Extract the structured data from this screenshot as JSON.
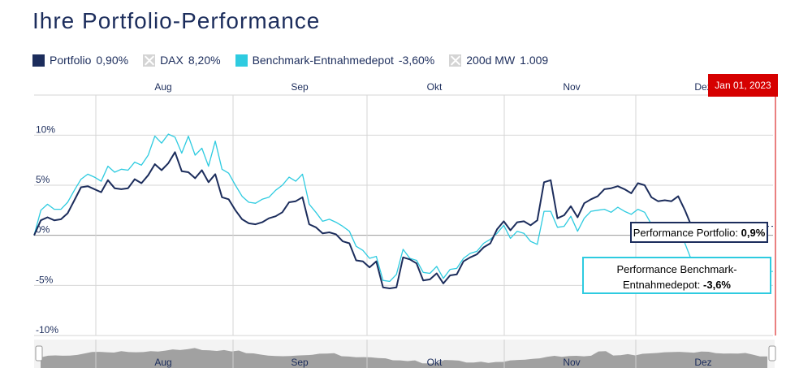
{
  "title": "Ihre Portfolio-Performance",
  "legend": [
    {
      "label": "Portfolio",
      "value": "0,90%",
      "color": "#1c2d5c",
      "active": true
    },
    {
      "label": "DAX",
      "value": "8,20%",
      "color": "#d4d4d4",
      "active": false
    },
    {
      "label": "Benchmark-Entnahmedepot",
      "value": "-3,60%",
      "color": "#2ecbe0",
      "active": true
    },
    {
      "label": "200d MW",
      "value": "1.009",
      "color": "#d4d4d4",
      "active": false
    }
  ],
  "crosshair": {
    "label": "Jan 01, 2023",
    "color": "#d60000"
  },
  "tooltips": {
    "portfolio": {
      "label": "Performance Portfolio:",
      "value": "0,9%"
    },
    "benchmark": {
      "label_line1": "Performance Benchmark-",
      "label_line2": "Entnahmedepot:",
      "value": "-3,6%"
    }
  },
  "chart_data": {
    "type": "line",
    "x_ticks": [
      "Aug",
      "Sep",
      "Okt",
      "Nov",
      "Dez"
    ],
    "y_ticks": [
      "10%",
      "5%",
      "0%",
      "-5%",
      "-10%"
    ],
    "y_tick_values": [
      10,
      5,
      0,
      -5,
      -10
    ],
    "ylim": [
      -10,
      14
    ],
    "grid": true,
    "series": [
      {
        "name": "Portfolio",
        "color": "#1c2d5c",
        "values": [
          0.0,
          1.5,
          1.8,
          1.5,
          1.6,
          2.2,
          3.5,
          4.8,
          4.9,
          4.6,
          4.3,
          5.5,
          4.7,
          4.6,
          4.7,
          5.6,
          5.2,
          6.0,
          7.1,
          6.5,
          7.2,
          8.3,
          6.4,
          6.3,
          5.7,
          6.5,
          5.3,
          6.1,
          3.8,
          3.6,
          2.5,
          1.6,
          1.2,
          1.1,
          1.3,
          1.7,
          1.9,
          2.3,
          3.3,
          3.4,
          3.8,
          1.1,
          0.8,
          0.2,
          0.3,
          0.1,
          -0.6,
          -0.8,
          -2.5,
          -2.6,
          -3.2,
          -2.6,
          -5.2,
          -5.3,
          -5.2,
          -2.2,
          -2.4,
          -2.8,
          -4.5,
          -4.4,
          -3.8,
          -4.8,
          -4.0,
          -3.9,
          -2.6,
          -2.2,
          -1.9,
          -1.2,
          -0.8,
          0.6,
          1.4,
          0.5,
          1.3,
          1.4,
          1.0,
          1.5,
          5.3,
          5.5,
          1.7,
          2.0,
          2.9,
          1.8,
          3.2,
          3.6,
          3.9,
          4.6,
          4.7,
          4.9,
          4.6,
          4.2,
          5.2,
          5.0,
          3.8,
          3.4,
          3.5,
          3.4,
          3.9,
          2.5,
          0.9,
          0.9
        ]
      },
      {
        "name": "Benchmark-Entnahmedepot",
        "color": "#2ecbe0",
        "values": [
          0.0,
          2.5,
          3.1,
          2.6,
          2.6,
          3.3,
          4.5,
          5.6,
          6.1,
          5.8,
          5.4,
          6.9,
          6.3,
          6.6,
          6.5,
          7.3,
          7.0,
          8.0,
          9.9,
          9.2,
          10.1,
          9.8,
          8.2,
          9.9,
          8.0,
          8.7,
          6.9,
          9.4,
          6.6,
          6.2,
          5.0,
          3.9,
          3.3,
          3.2,
          3.6,
          3.8,
          4.5,
          5.0,
          5.8,
          5.4,
          6.1,
          3.1,
          2.3,
          1.4,
          1.6,
          1.3,
          0.9,
          0.4,
          -1.1,
          -1.5,
          -2.3,
          -2.1,
          -4.5,
          -4.6,
          -3.9,
          -1.4,
          -2.3,
          -2.5,
          -3.7,
          -3.8,
          -3.1,
          -4.3,
          -3.4,
          -3.3,
          -2.3,
          -1.8,
          -1.6,
          -0.8,
          -0.4,
          0.2,
          1.0,
          -0.3,
          0.4,
          0.2,
          -0.6,
          -0.9,
          2.4,
          2.4,
          0.8,
          0.9,
          1.9,
          0.4,
          1.7,
          2.4,
          2.5,
          2.6,
          2.3,
          2.8,
          2.4,
          2.1,
          2.6,
          2.3,
          1.1,
          1.0,
          1.2,
          1.0,
          1.1,
          -0.8,
          -2.5,
          -3.6
        ]
      }
    ]
  }
}
